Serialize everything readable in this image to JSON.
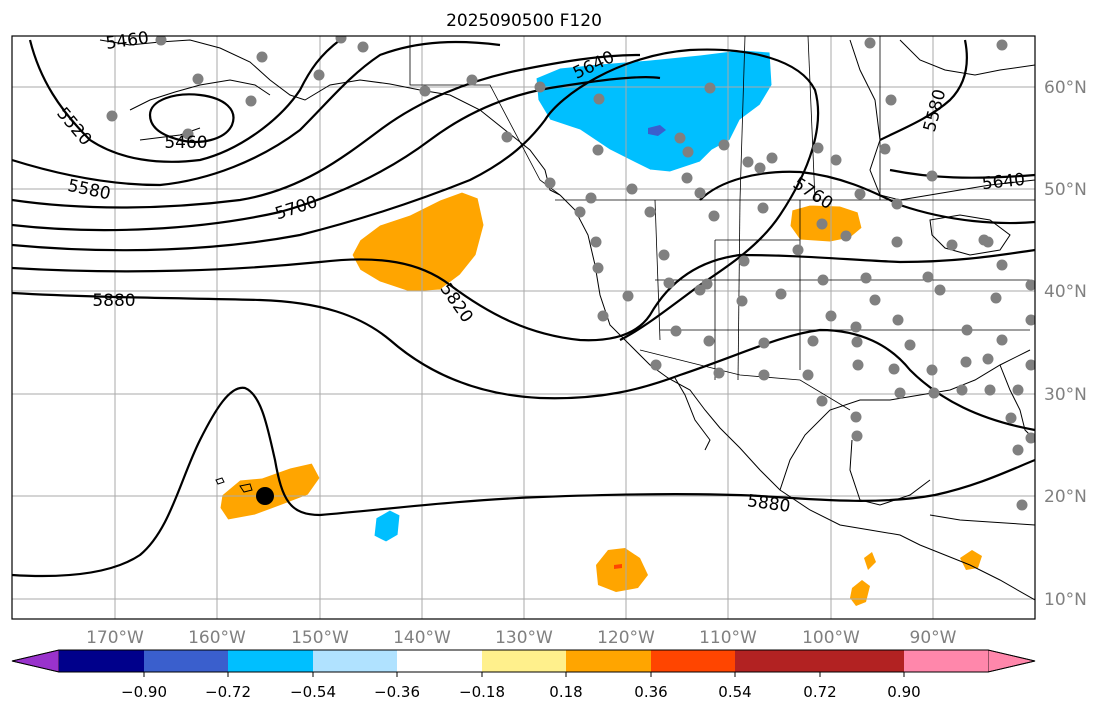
{
  "title": "2025090500 F120",
  "lon_labels": [
    "170°W",
    "160°W",
    "150°W",
    "140°W",
    "130°W",
    "120°W",
    "110°W",
    "100°W",
    "90°W"
  ],
  "lat_labels": [
    "10°N",
    "20°N",
    "30°N",
    "40°N",
    "50°N",
    "60°N"
  ],
  "colorbar": {
    "tick_labels": [
      "−0.90",
      "−0.72",
      "−0.54",
      "−0.36",
      "−0.18",
      "0.18",
      "0.36",
      "0.54",
      "0.72",
      "0.90"
    ],
    "colors": [
      "#9932cc",
      "#00008b",
      "#3a5fcd",
      "#00bfff",
      "#b0e2ff",
      "#ffffff",
      "#fff08c",
      "#ffa500",
      "#ff4500",
      "#b22222",
      "#ff87ab"
    ]
  },
  "contour_labels": [
    "5460",
    "5460",
    "5520",
    "5580",
    "5580",
    "5640",
    "5640",
    "5700",
    "5760",
    "5820",
    "5880",
    "5880"
  ],
  "fill_colors": {
    "positive": "#ffa500",
    "negative": "#00bfff",
    "strong_negative": "#3a5fcd",
    "strong_positive": "#ff4500",
    "stations": "#808080"
  }
}
